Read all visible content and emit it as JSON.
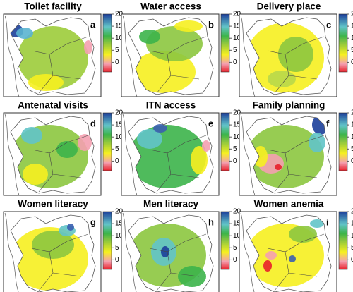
{
  "colorbar": {
    "lim": [
      -4,
      20
    ],
    "ticks": [
      20,
      15,
      10,
      5,
      0
    ]
  },
  "panels": [
    {
      "title": "Toilet facility",
      "letter": "a"
    },
    {
      "title": "Water access",
      "letter": "b"
    },
    {
      "title": "Delivery place",
      "letter": "c"
    },
    {
      "title": "Antenatal visits",
      "letter": "d"
    },
    {
      "title": "ITN access",
      "letter": "e"
    },
    {
      "title": "Family planning",
      "letter": "f"
    },
    {
      "title": "Women literacy",
      "letter": "g"
    },
    {
      "title": "Men literacy",
      "letter": "h"
    },
    {
      "title": "Women anemia",
      "letter": "i"
    }
  ]
}
